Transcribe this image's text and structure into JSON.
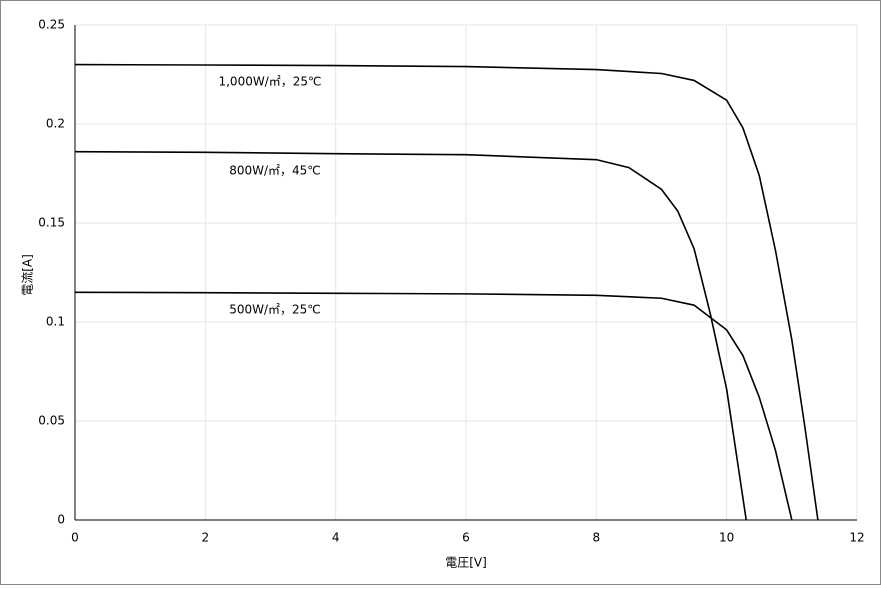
{
  "chart_data": {
    "type": "line",
    "x_label": "電圧[V]",
    "y_label": "電流[A]",
    "xlim": [
      0,
      12
    ],
    "xticks": [
      0,
      2,
      4,
      6,
      8,
      10,
      12
    ],
    "ylim": [
      0,
      0.25
    ],
    "yticks": [
      0,
      0.05,
      0.1,
      0.15,
      0.2,
      0.25
    ],
    "grid": true,
    "series": [
      {
        "name": "1,000W/㎡，25℃",
        "color": "#000000",
        "x": [
          0,
          2,
          4,
          6,
          8,
          9,
          9.5,
          10,
          10.25,
          10.5,
          10.75,
          11,
          11.2,
          11.4
        ],
        "values": [
          0.23,
          0.2298,
          0.2295,
          0.229,
          0.2275,
          0.2255,
          0.222,
          0.212,
          0.198,
          0.174,
          0.136,
          0.091,
          0.047,
          0
        ]
      },
      {
        "name": "800W/㎡，45℃",
        "color": "#000000",
        "x": [
          0,
          2,
          4,
          6,
          8,
          8.5,
          9,
          9.25,
          9.5,
          9.75,
          10,
          10.3
        ],
        "values": [
          0.186,
          0.1857,
          0.185,
          0.1845,
          0.182,
          0.178,
          0.167,
          0.156,
          0.137,
          0.104,
          0.066,
          0
        ]
      },
      {
        "name": "500W/㎡，25℃",
        "color": "#000000",
        "x": [
          0,
          2,
          4,
          6,
          8,
          9,
          9.5,
          10,
          10.25,
          10.5,
          10.75,
          11
        ],
        "values": [
          0.115,
          0.1148,
          0.1145,
          0.1142,
          0.1135,
          0.112,
          0.1085,
          0.096,
          0.083,
          0.062,
          0.035,
          0
        ]
      }
    ]
  }
}
